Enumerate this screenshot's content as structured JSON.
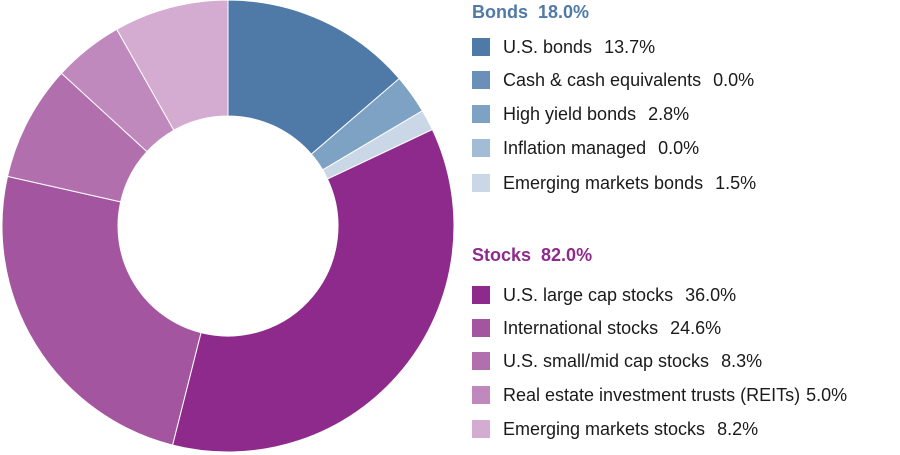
{
  "chart_data": {
    "type": "pie",
    "donut": true,
    "groups": [
      {
        "name": "Bonds",
        "total": "18.0%",
        "color": "#4f7aa8",
        "items": [
          {
            "label": "U.S. bonds",
            "value": 13.7,
            "display": "13.7%",
            "color": "#4f7aa8"
          },
          {
            "label": "Cash & cash equivalents",
            "value": 0.0,
            "display": "0.0%",
            "color": "#6a8fb9"
          },
          {
            "label": "High yield bonds",
            "value": 2.8,
            "display": "2.8%",
            "color": "#7ea2c4"
          },
          {
            "label": "Inflation managed",
            "value": 0.0,
            "display": "0.0%",
            "color": "#a3bcd6"
          },
          {
            "label": "Emerging markets bonds",
            "value": 1.5,
            "display": "1.5%",
            "color": "#c9d7e7"
          }
        ]
      },
      {
        "name": "Stocks",
        "total": "82.0%",
        "color": "#8e2a8c",
        "items": [
          {
            "label": "U.S. large cap stocks",
            "value": 36.0,
            "display": "36.0%",
            "color": "#8e2a8c"
          },
          {
            "label": "International stocks",
            "value": 24.6,
            "display": "24.6%",
            "color": "#a3559f"
          },
          {
            "label": "U.S. small/mid cap stocks",
            "value": 8.3,
            "display": "8.3%",
            "color": "#b26fae"
          },
          {
            "label": "Real estate investment trusts (REITs)",
            "value": 5.0,
            "display": "5.0%",
            "color": "#c089bd"
          },
          {
            "label": "Emerging markets stocks",
            "value": 8.2,
            "display": "8.2%",
            "color": "#d5acd1"
          }
        ]
      }
    ]
  }
}
